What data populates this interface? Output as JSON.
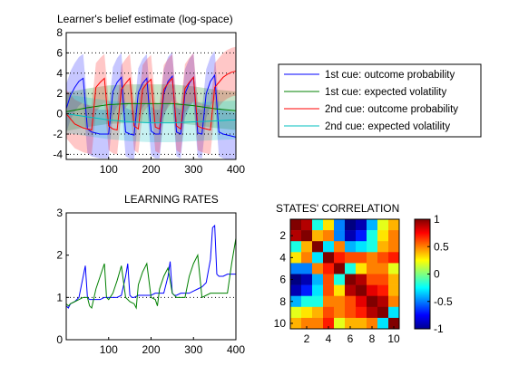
{
  "colors": {
    "cue1_prob": "#0000ff",
    "cue1_vol": "#008000",
    "cue2_prob": "#ff0000",
    "cue2_vol": "#00bfbf"
  },
  "chart_data": [
    {
      "type": "line",
      "title": "Learner's belief estimate (log-space)",
      "xlim": [
        0,
        400
      ],
      "ylim": [
        -4.5,
        8
      ],
      "xticks": [
        100,
        200,
        300,
        400
      ],
      "yticks": [
        -4,
        -2,
        0,
        2,
        4,
        6,
        8
      ],
      "grid": "y-dotted",
      "legend_position": "right",
      "series": [
        {
          "name": "1st cue: outcome probability",
          "color": "#0000ff",
          "x": [
            0,
            10,
            20,
            30,
            40,
            50,
            60,
            70,
            80,
            90,
            100,
            110,
            120,
            130,
            140,
            150,
            160,
            170,
            180,
            190,
            200,
            210,
            220,
            230,
            240,
            250,
            260,
            270,
            280,
            290,
            300,
            310,
            320,
            330,
            340,
            350,
            360,
            370,
            380,
            390,
            400
          ],
          "y": [
            0.5,
            1.8,
            2.6,
            3.2,
            3.5,
            -1.5,
            -1.8,
            -1.9,
            -2.0,
            -2.0,
            -2.0,
            2.2,
            3.1,
            3.6,
            -1.8,
            -2.0,
            -2.1,
            2.1,
            3.0,
            3.5,
            -1.7,
            -2.0,
            -2.0,
            2.0,
            3.2,
            3.7,
            -1.8,
            -2.0,
            2.0,
            3.0,
            3.6,
            -1.9,
            -2.0,
            2.0,
            3.2,
            3.8,
            -1.8,
            -2.0,
            -2.1,
            -2.2,
            -2.3
          ]
        },
        {
          "name": "1st cue: expected volatility",
          "color": "#008000",
          "x": [
            0,
            50,
            100,
            150,
            200,
            250,
            300,
            350,
            400
          ],
          "y": [
            0.2,
            0.6,
            0.9,
            1.0,
            1.0,
            1.0,
            0.8,
            0.5,
            0.3
          ]
        },
        {
          "name": "2nd cue: outcome probability",
          "color": "#ff0000",
          "x": [
            0,
            10,
            20,
            30,
            40,
            50,
            60,
            70,
            80,
            90,
            100,
            110,
            120,
            130,
            140,
            150,
            160,
            170,
            180,
            190,
            200,
            210,
            220,
            230,
            240,
            250,
            260,
            270,
            280,
            290,
            300,
            310,
            320,
            330,
            340,
            350,
            360,
            370,
            380,
            390,
            400
          ],
          "y": [
            0.0,
            -0.5,
            -1.0,
            -1.2,
            -1.4,
            -1.5,
            -1.6,
            2.6,
            3.1,
            3.5,
            -1.2,
            -1.5,
            -1.6,
            2.4,
            3.0,
            3.5,
            -1.2,
            -1.5,
            2.4,
            3.0,
            3.4,
            -1.3,
            -1.5,
            2.4,
            3.0,
            3.5,
            -1.2,
            -1.5,
            2.5,
            3.1,
            3.6,
            -1.2,
            -1.4,
            -1.5,
            -1.6,
            2.6,
            3.1,
            3.6,
            3.9,
            4.1,
            4.2
          ]
        },
        {
          "name": "2nd cue: expected volatility",
          "color": "#00bfbf",
          "x": [
            0,
            50,
            100,
            150,
            200,
            250,
            300,
            350,
            400
          ],
          "y": [
            0.0,
            -0.3,
            -0.6,
            -0.8,
            -0.9,
            -0.9,
            -0.8,
            -0.7,
            -0.6
          ]
        }
      ]
    },
    {
      "type": "line",
      "title": "LEARNING RATES",
      "xlim": [
        0,
        400
      ],
      "ylim": [
        0,
        3
      ],
      "xticks": [
        0,
        100,
        200,
        300,
        400
      ],
      "yticks": [
        0,
        1,
        2,
        3
      ],
      "grid": "y=1 dotted",
      "series": [
        {
          "color": "#0000ff",
          "x": [
            0,
            5,
            10,
            20,
            30,
            40,
            45,
            50,
            55,
            60,
            70,
            80,
            90,
            100,
            110,
            120,
            130,
            140,
            145,
            150,
            155,
            160,
            170,
            180,
            190,
            200,
            210,
            220,
            230,
            240,
            245,
            250,
            255,
            260,
            270,
            280,
            290,
            300,
            310,
            320,
            330,
            340,
            345,
            350,
            355,
            360,
            370,
            380,
            390,
            395,
            400
          ],
          "y": [
            0.8,
            0.75,
            0.85,
            0.9,
            1.0,
            1.5,
            1.75,
            1.0,
            0.95,
            0.95,
            0.95,
            0.95,
            1.0,
            1.0,
            1.0,
            1.0,
            1.05,
            1.5,
            1.8,
            1.05,
            1.0,
            1.0,
            1.05,
            1.05,
            1.05,
            1.05,
            1.1,
            1.1,
            1.1,
            1.5,
            1.85,
            1.1,
            1.05,
            1.05,
            1.1,
            1.1,
            1.1,
            1.15,
            1.2,
            1.25,
            1.35,
            1.9,
            2.65,
            2.7,
            1.55,
            1.5,
            1.5,
            1.55,
            1.55,
            1.55,
            1.55
          ]
        },
        {
          "color": "#008000",
          "x": [
            0,
            5,
            10,
            20,
            30,
            40,
            50,
            55,
            60,
            70,
            80,
            90,
            95,
            100,
            110,
            120,
            130,
            140,
            150,
            160,
            165,
            170,
            180,
            190,
            200,
            210,
            215,
            220,
            230,
            240,
            250,
            260,
            270,
            280,
            290,
            300,
            310,
            320,
            330,
            340,
            350,
            360,
            370,
            380,
            390,
            400
          ],
          "y": [
            0.85,
            0.8,
            0.85,
            0.9,
            0.95,
            1.0,
            1.0,
            0.8,
            0.75,
            1.2,
            1.5,
            1.8,
            1.0,
            0.95,
            1.1,
            1.4,
            1.75,
            1.0,
            0.9,
            0.85,
            0.75,
            1.3,
            1.6,
            1.8,
            1.0,
            0.95,
            0.8,
            1.2,
            1.5,
            1.7,
            1.1,
            1.0,
            1.0,
            1.0,
            1.5,
            1.8,
            2.0,
            1.0,
            1.05,
            1.1,
            1.1,
            1.1,
            1.1,
            1.1,
            1.8,
            2.4
          ]
        }
      ]
    },
    {
      "type": "heatmap",
      "title": "STATES' CORRELATION",
      "rows": 10,
      "cols": 10,
      "xticks": [
        2,
        4,
        6,
        8,
        10
      ],
      "yticks": [
        2,
        4,
        6,
        8,
        10
      ],
      "colorbar_ticks": [
        1,
        0.5,
        0,
        -0.5,
        -1
      ],
      "colorbar_tick_labels": [
        "1",
        "0.5",
        "0",
        "-0.5",
        "-1"
      ],
      "vlim": [
        -1,
        1
      ],
      "values": [
        [
          1.0,
          0.9,
          -0.2,
          0.3,
          -0.5,
          -1.0,
          -0.9,
          -0.4,
          0.2,
          0.4
        ],
        [
          0.9,
          1.0,
          0.4,
          0.5,
          -0.5,
          -0.9,
          -0.7,
          -0.2,
          0.3,
          0.5
        ],
        [
          -0.2,
          0.4,
          1.0,
          -0.3,
          0.5,
          -0.4,
          -0.3,
          -0.2,
          0.4,
          0.5
        ],
        [
          0.3,
          0.5,
          -0.3,
          1.0,
          0.7,
          0.6,
          0.6,
          0.5,
          0.6,
          0.7
        ],
        [
          -0.5,
          -0.5,
          0.5,
          0.7,
          1.0,
          -0.2,
          0.3,
          0.5,
          0.5,
          0.2
        ],
        [
          -1.0,
          -0.9,
          -0.4,
          0.6,
          -0.2,
          1.0,
          0.9,
          0.6,
          0.6,
          0.4
        ],
        [
          -0.9,
          -0.7,
          -0.3,
          0.6,
          0.3,
          0.9,
          1.0,
          0.8,
          0.7,
          0.4
        ],
        [
          -0.4,
          -0.2,
          -0.2,
          0.5,
          0.5,
          0.6,
          0.8,
          1.0,
          0.9,
          0.5
        ],
        [
          0.2,
          0.3,
          0.4,
          0.6,
          0.5,
          0.6,
          0.7,
          0.9,
          1.0,
          -0.3
        ],
        [
          0.4,
          0.5,
          0.5,
          0.7,
          0.2,
          0.4,
          0.4,
          0.5,
          -0.3,
          1.0
        ]
      ]
    }
  ]
}
